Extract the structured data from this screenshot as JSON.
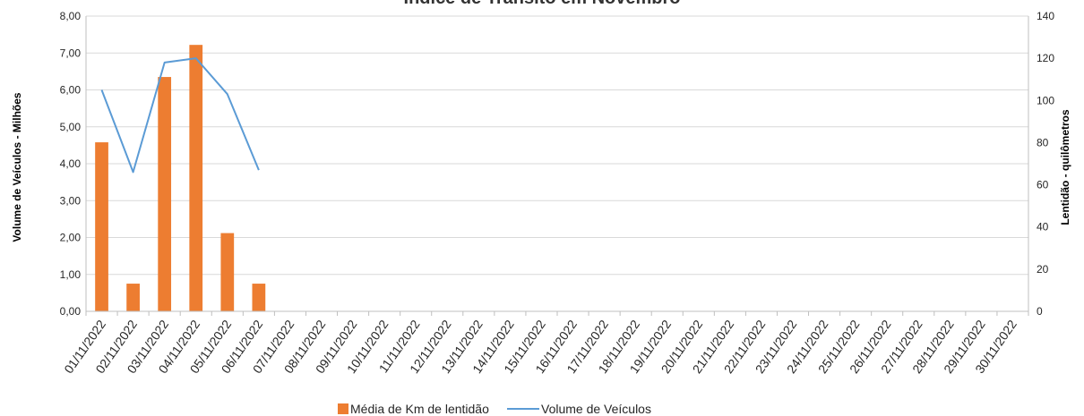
{
  "chart_data": {
    "type": "bar",
    "title": "Índice de Trânsito em Novembro",
    "categories": [
      "01/11/2022",
      "02/11/2022",
      "03/11/2022",
      "04/11/2022",
      "05/11/2022",
      "06/11/2022",
      "07/11/2022",
      "08/11/2022",
      "09/11/2022",
      "10/11/2022",
      "11/11/2022",
      "12/11/2022",
      "13/11/2022",
      "14/11/2022",
      "15/11/2022",
      "16/11/2022",
      "17/11/2022",
      "18/11/2022",
      "19/11/2022",
      "20/11/2022",
      "21/11/2022",
      "22/11/2022",
      "23/11/2022",
      "24/11/2022",
      "25/11/2022",
      "26/11/2022",
      "27/11/2022",
      "28/11/2022",
      "29/11/2022",
      "30/11/2022"
    ],
    "series": [
      {
        "name": "Média de Km de lentidão",
        "type": "bar",
        "axis": "left",
        "color": "#ED7D31",
        "values": [
          4.58,
          0.75,
          6.35,
          7.22,
          2.12,
          0.75,
          null,
          null,
          null,
          null,
          null,
          null,
          null,
          null,
          null,
          null,
          null,
          null,
          null,
          null,
          null,
          null,
          null,
          null,
          null,
          null,
          null,
          null,
          null,
          null
        ]
      },
      {
        "name": "Volume de Veículos",
        "type": "line",
        "axis": "right",
        "color": "#5B9BD5",
        "values": [
          105,
          66,
          118,
          120,
          103,
          67,
          null,
          null,
          null,
          null,
          null,
          null,
          null,
          null,
          null,
          null,
          null,
          null,
          null,
          null,
          null,
          null,
          null,
          null,
          null,
          null,
          null,
          null,
          null,
          null
        ]
      }
    ],
    "ylabel": "Volume de Veículos  - Milhões",
    "y2label": "Lentidão - quilômetros",
    "ylim": [
      0,
      8
    ],
    "y2lim": [
      0,
      140
    ],
    "yticks": [
      "0,00",
      "1,00",
      "2,00",
      "3,00",
      "4,00",
      "5,00",
      "6,00",
      "7,00",
      "8,00"
    ],
    "y2ticks": [
      "0",
      "20",
      "40",
      "60",
      "80",
      "100",
      "120",
      "140"
    ],
    "grid": true,
    "legend_position": "bottom"
  }
}
